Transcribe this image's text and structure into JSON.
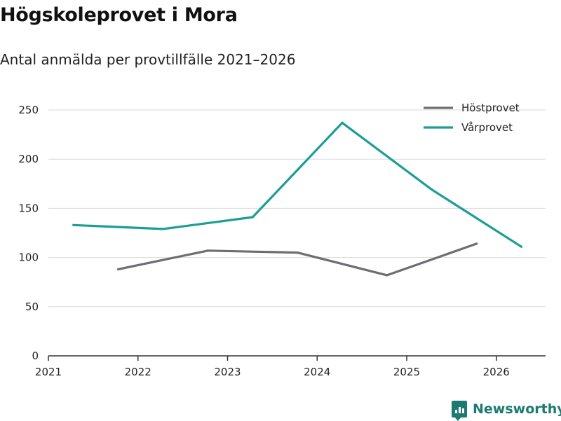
{
  "chart_data": {
    "type": "line",
    "title": "Högskoleprovet i Mora",
    "subtitle": "Antal anmälda per provtillfälle 2021–2026",
    "xlabel": "",
    "ylabel": "",
    "xlim": [
      2021,
      2026.55
    ],
    "ylim": [
      0,
      250
    ],
    "x_ticks": [
      2021,
      2022,
      2023,
      2024,
      2025,
      2026
    ],
    "y_ticks": [
      0,
      50,
      100,
      150,
      200,
      250
    ],
    "grid": true,
    "legend_position": "top-right",
    "series": [
      {
        "name": "Höstprovet",
        "color": "#6e6c74",
        "x": [
          2021.78,
          2022.78,
          2023.78,
          2024.78,
          2025.78
        ],
        "values": [
          88,
          107,
          105,
          82,
          114
        ]
      },
      {
        "name": "Vårprovet",
        "color": "#1a9e95",
        "x": [
          2021.28,
          2022.28,
          2023.28,
          2024.28,
          2025.28,
          2026.28
        ],
        "values": [
          133,
          129,
          141,
          237,
          169,
          111
        ]
      }
    ]
  },
  "brand": {
    "name": "Newsworthy"
  }
}
